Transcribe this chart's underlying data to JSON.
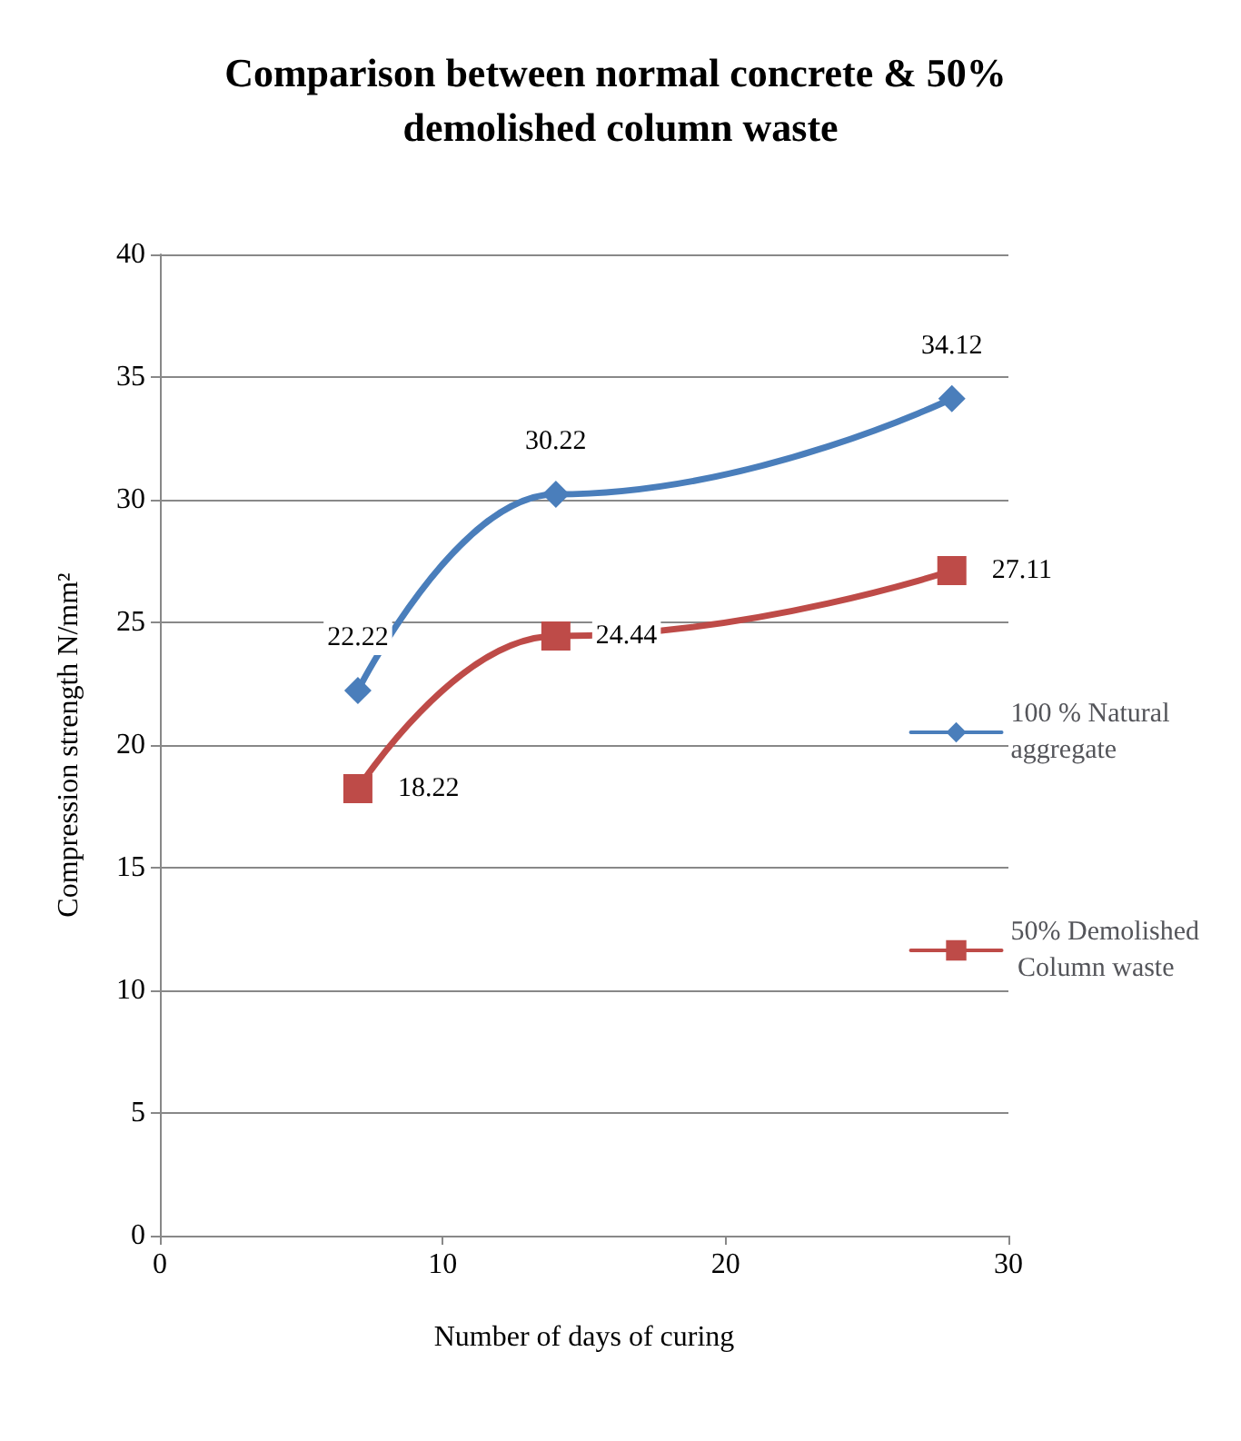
{
  "chart_data": {
    "type": "line",
    "title": "Comparison between normal concrete & 50% demolished column waste",
    "xlabel": "Number of days of curing",
    "ylabel": "Compression strength N/mm²",
    "x": [
      7,
      14,
      28
    ],
    "series": [
      {
        "name": "100 % Natural aggregate",
        "color": "#4a7ebb",
        "marker": "diamond",
        "values": [
          22.22,
          30.22,
          34.12
        ]
      },
      {
        "name": "50% Demolished Column waste",
        "color": "#be4b48",
        "marker": "square",
        "values": [
          18.22,
          24.44,
          27.11
        ]
      }
    ],
    "xlim": [
      0,
      30
    ],
    "xticks": [
      0,
      10,
      20,
      30
    ],
    "ylim": [
      0,
      40
    ],
    "yticks": [
      0,
      5,
      10,
      15,
      20,
      25,
      30,
      35,
      40
    ],
    "grid": "y",
    "legend": "right",
    "data_labels": true,
    "line_style": "solid"
  }
}
